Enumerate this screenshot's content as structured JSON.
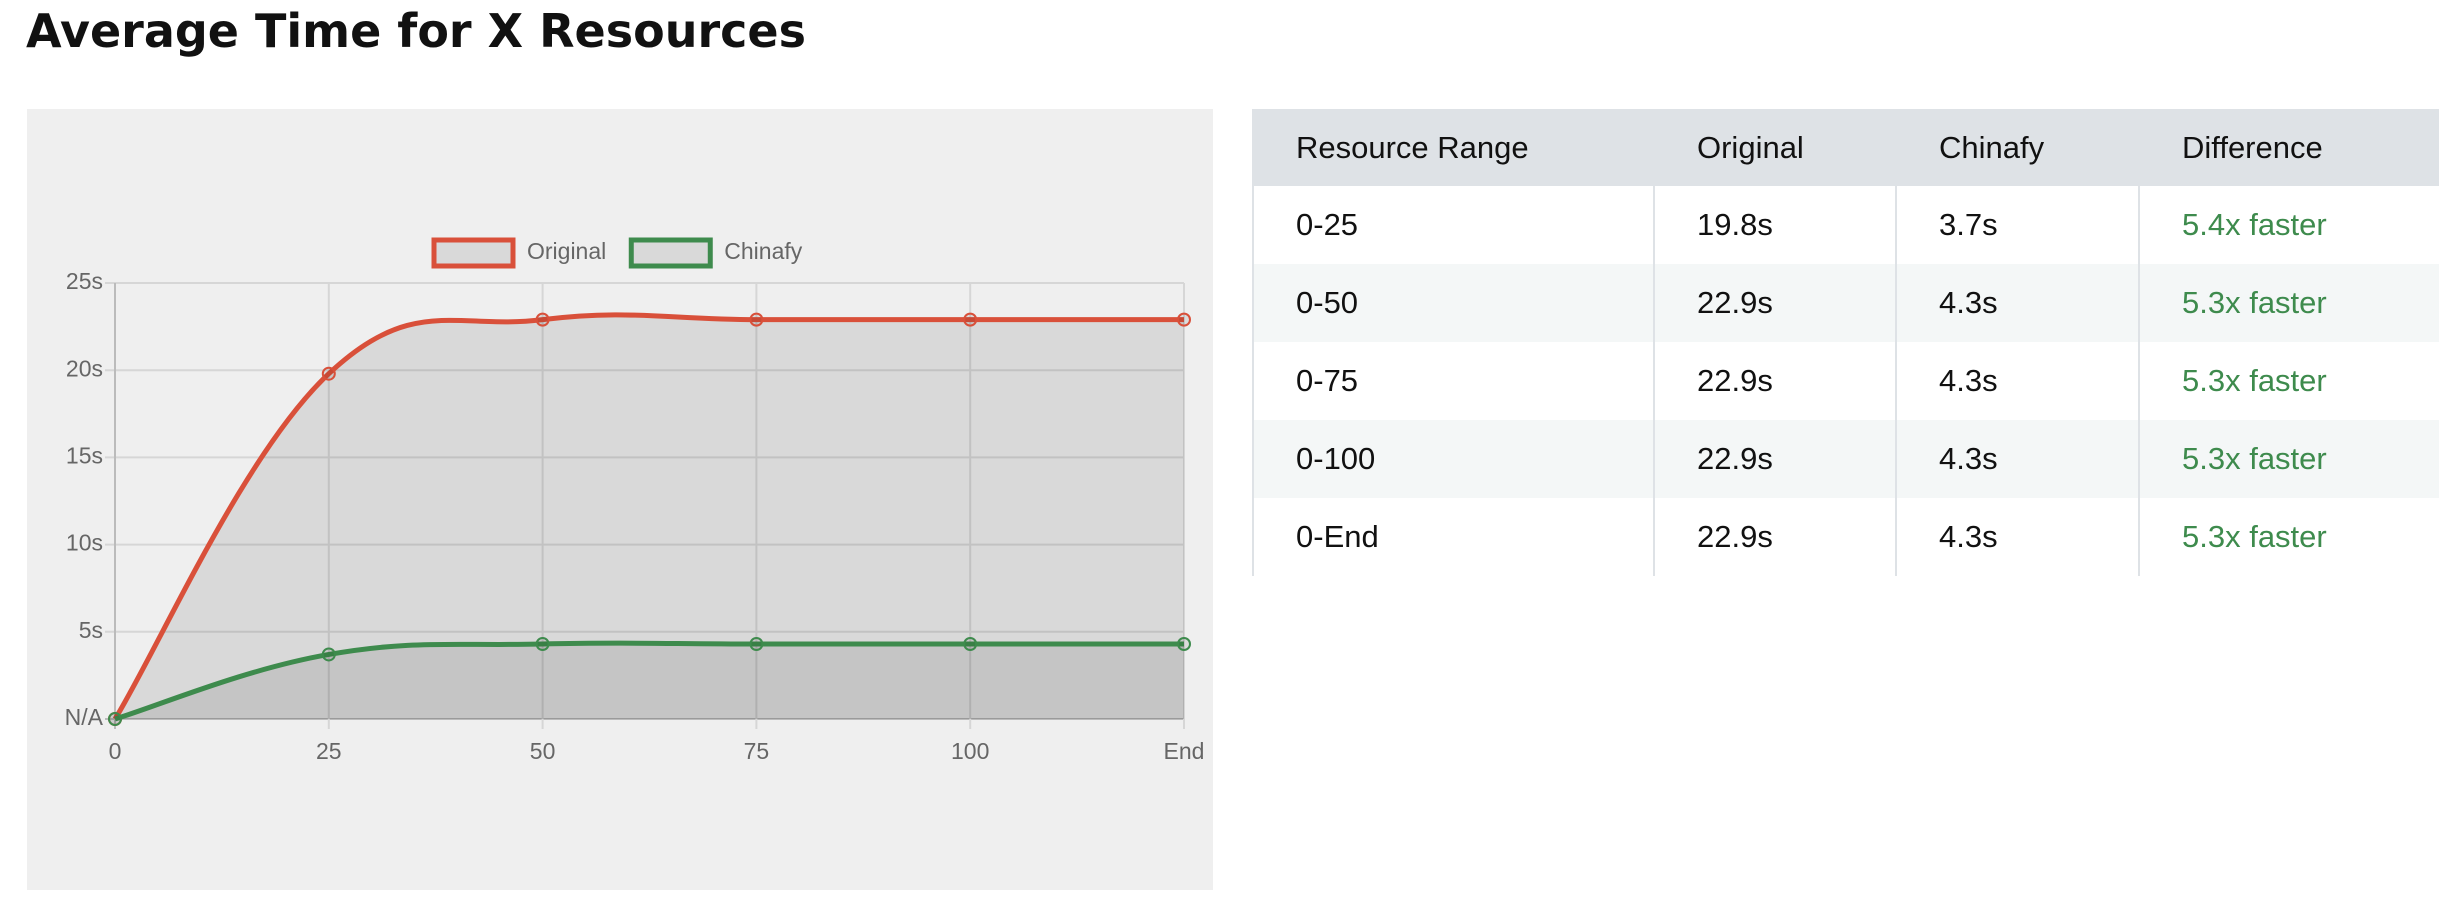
{
  "title": "Average Time for X Resources",
  "chart_data": {
    "type": "line",
    "categories": [
      "0",
      "25",
      "50",
      "75",
      "100",
      "End"
    ],
    "series": [
      {
        "name": "Original",
        "color": "#d9503a",
        "values": [
          0,
          19.8,
          22.9,
          22.9,
          22.9,
          22.9
        ]
      },
      {
        "name": "Chinafy",
        "color": "#3e8b4d",
        "values": [
          0,
          3.7,
          4.3,
          4.3,
          4.3,
          4.3
        ]
      }
    ],
    "ylim": [
      0,
      25
    ],
    "yticks": [
      {
        "value": 0,
        "label": "N/A"
      },
      {
        "value": 5,
        "label": "5s"
      },
      {
        "value": 10,
        "label": "10s"
      },
      {
        "value": 15,
        "label": "15s"
      },
      {
        "value": 20,
        "label": "20s"
      },
      {
        "value": 25,
        "label": "25s"
      }
    ],
    "grid": true,
    "legend": "top"
  },
  "table": {
    "columns": [
      "Resource Range",
      "Original",
      "Chinafy",
      "Difference"
    ],
    "rows": [
      [
        "0-25",
        "19.8s",
        "3.7s",
        "5.4x faster"
      ],
      [
        "0-50",
        "22.9s",
        "4.3s",
        "5.3x faster"
      ],
      [
        "0-75",
        "22.9s",
        "4.3s",
        "5.3x faster"
      ],
      [
        "0-100",
        "22.9s",
        "4.3s",
        "5.3x faster"
      ],
      [
        "0-End",
        "22.9s",
        "4.3s",
        "5.3x faster"
      ]
    ]
  }
}
